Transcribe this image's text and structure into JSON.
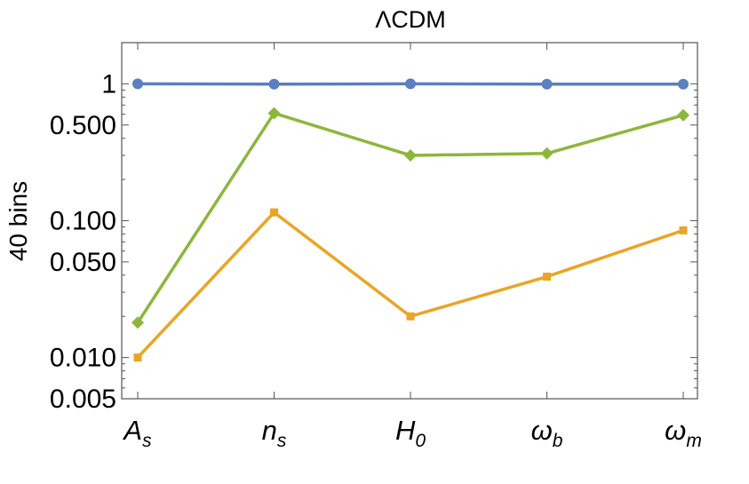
{
  "chart_data": {
    "type": "line",
    "title": "ΛCDM",
    "ylabel": "40 bins",
    "xlabel": "",
    "yscale": "log",
    "ylim": [
      0.005,
      2.0
    ],
    "grid": false,
    "legend": "none",
    "categories": [
      {
        "base": "A",
        "sub": "s"
      },
      {
        "base": "n",
        "sub": "s"
      },
      {
        "base": "H",
        "sub": "0"
      },
      {
        "base": "ω",
        "sub": "b"
      },
      {
        "base": "ω",
        "sub": "m"
      }
    ],
    "yticks_labeled": [
      {
        "value": 1,
        "label": "1"
      },
      {
        "value": 0.5,
        "label": "0.500"
      },
      {
        "value": 0.1,
        "label": "0.100"
      },
      {
        "value": 0.05,
        "label": "0.050"
      },
      {
        "value": 0.01,
        "label": "0.010"
      },
      {
        "value": 0.005,
        "label": "0.005"
      }
    ],
    "series": [
      {
        "color": "#5b7fbf",
        "marker": "circle",
        "values": [
          1.0,
          0.995,
          1.0,
          0.995,
          0.995
        ]
      },
      {
        "color": "#8db63c",
        "marker": "diamond",
        "values": [
          0.018,
          0.61,
          0.3,
          0.31,
          0.59
        ]
      },
      {
        "color": "#e9a526",
        "marker": "square",
        "values": [
          0.01,
          0.115,
          0.02,
          0.039,
          0.085
        ]
      }
    ]
  }
}
